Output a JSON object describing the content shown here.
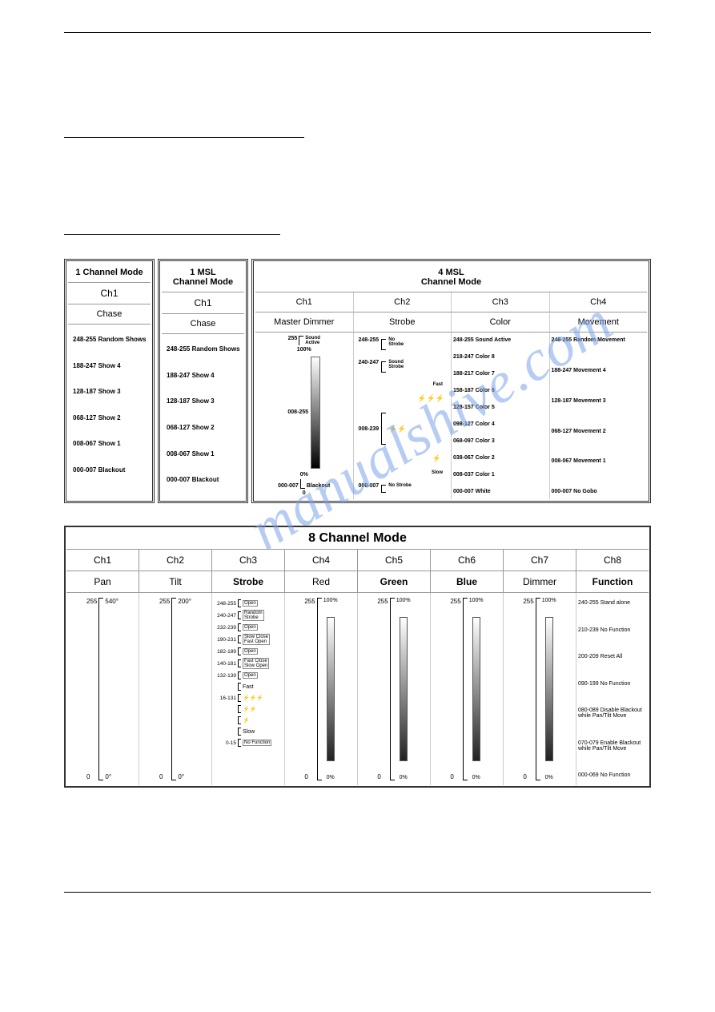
{
  "watermark": "manualshive.com",
  "mode1": {
    "title1": "1 Channel Mode",
    "title2a": "1 MSL",
    "title2b": "Channel Mode",
    "ch_label": "Ch1",
    "type_label": "Chase",
    "ranges": [
      "248-255 Random Shows",
      "188-247 Show 4",
      "128-187 Show 3",
      "068-127 Show 2",
      "008-067 Show 1",
      "000-007 Blackout"
    ]
  },
  "msl4": {
    "title_a": "4 MSL",
    "title_b": "Channel Mode",
    "ch_labels": [
      "Ch1",
      "Ch2",
      "Ch3",
      "Ch4"
    ],
    "type_labels": [
      "Master Dimmer",
      "Strobe",
      "Color",
      "Movement"
    ],
    "dimmer": {
      "top_val": "255",
      "sound_active": "Sound\nActive",
      "pct_top": "100%",
      "range_on": "008-255",
      "pct_bot": "0%",
      "range_off": "000-007",
      "blackout": "Blackout",
      "zero": "0"
    },
    "strobe": {
      "r1": "248-255",
      "l1": "No\nStrobe",
      "r2": "240-247",
      "l2": "Sound\nStrobe",
      "fast": "Fast",
      "r3": "008-239",
      "slow": "Slow",
      "r4": "000-007",
      "l4": "No Strobe"
    },
    "color": [
      "248-255 Sound Active",
      "218-247 Color 8",
      "188-217 Color 7",
      "158-187 Color 6",
      "128-157 Color 5",
      "098-127 Color 4",
      "068-097 Color 3",
      "038-067 Color 2",
      "008-037 Color 1",
      "000-007 White"
    ],
    "movement": [
      "248-255 Random Movement",
      "188-247 Movement 4",
      "128-187 Movement 3",
      "068-127 Movement 2",
      "008-067 Movement 1",
      "000-007 No Gobo"
    ]
  },
  "ch8": {
    "title": "8 Channel Mode",
    "ch_labels": [
      "Ch1",
      "Ch2",
      "Ch3",
      "Ch4",
      "Ch5",
      "Ch6",
      "Ch7",
      "Ch8"
    ],
    "type_labels": [
      "Pan",
      "Tilt",
      "Strobe",
      "Red",
      "Green",
      "Blue",
      "Dimmer",
      "Function"
    ],
    "pan": {
      "top_n": "255",
      "top_d": "540°",
      "bot_n": "0",
      "bot_d": "0°"
    },
    "tilt": {
      "top_n": "255",
      "top_d": "200°",
      "bot_n": "0",
      "bot_d": "0°"
    },
    "pct": {
      "top_n": "255",
      "top_d": "100%",
      "bot_n": "0",
      "bot_d": "0%"
    },
    "strobe": [
      {
        "r": "248-255",
        "l": "Open"
      },
      {
        "r": "240-247",
        "l": "Random\nStrobe"
      },
      {
        "r": "232-239",
        "l": "Open"
      },
      {
        "r": "190-231",
        "l": "Slow Close\nFast Open"
      },
      {
        "r": "182-189",
        "l": "Open"
      },
      {
        "r": "140-181",
        "l": "Fast Close\nSlow Open"
      },
      {
        "r": "132-139",
        "l": "Open"
      },
      {
        "r": "",
        "l": "Fast"
      },
      {
        "r": "16-131",
        "l": "⚡⚡⚡"
      },
      {
        "r": "",
        "l": "⚡⚡"
      },
      {
        "r": "",
        "l": "⚡"
      },
      {
        "r": "",
        "l": "Slow"
      },
      {
        "r": "0-15",
        "l": "No Function"
      }
    ],
    "func": [
      "240-255 Stand alone",
      "210-239 No Function",
      "200-209 Reset All",
      "090-199 No Function",
      "080-089 Disable Blackout while Pan/Tilt Move",
      "070-079 Enable Blackout while Pan/Tilt Move",
      "000-069 No Function"
    ]
  }
}
